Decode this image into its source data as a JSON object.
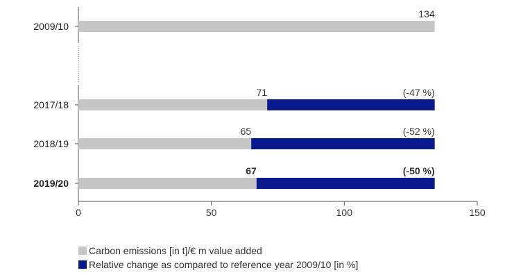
{
  "chart_data": {
    "type": "bar",
    "orientation": "horizontal",
    "stacked": true,
    "categories": [
      "2009/10",
      "2017/18",
      "2018/19",
      "2019/20"
    ],
    "highlighted_category": "2019/20",
    "axis_break_after": "2009/10",
    "xlim": [
      0,
      150
    ],
    "xticks": [
      0,
      50,
      100,
      150
    ],
    "series": [
      {
        "name": "Carbon emissions [in t]/€ m value added",
        "color": "#c6c6c6",
        "values": [
          134,
          71,
          65,
          67
        ],
        "labels": [
          "134",
          "71",
          "65",
          "67"
        ]
      },
      {
        "name": "Relative change as compared to reference year 2009/10 [in %]",
        "color": "#0a1a8c",
        "values": [
          0,
          63,
          69,
          67
        ],
        "labels": [
          "",
          "(-47 %)",
          "(-52 %)",
          "(-50 %)"
        ]
      }
    ],
    "grid": false,
    "legend_position": "bottom-left"
  }
}
